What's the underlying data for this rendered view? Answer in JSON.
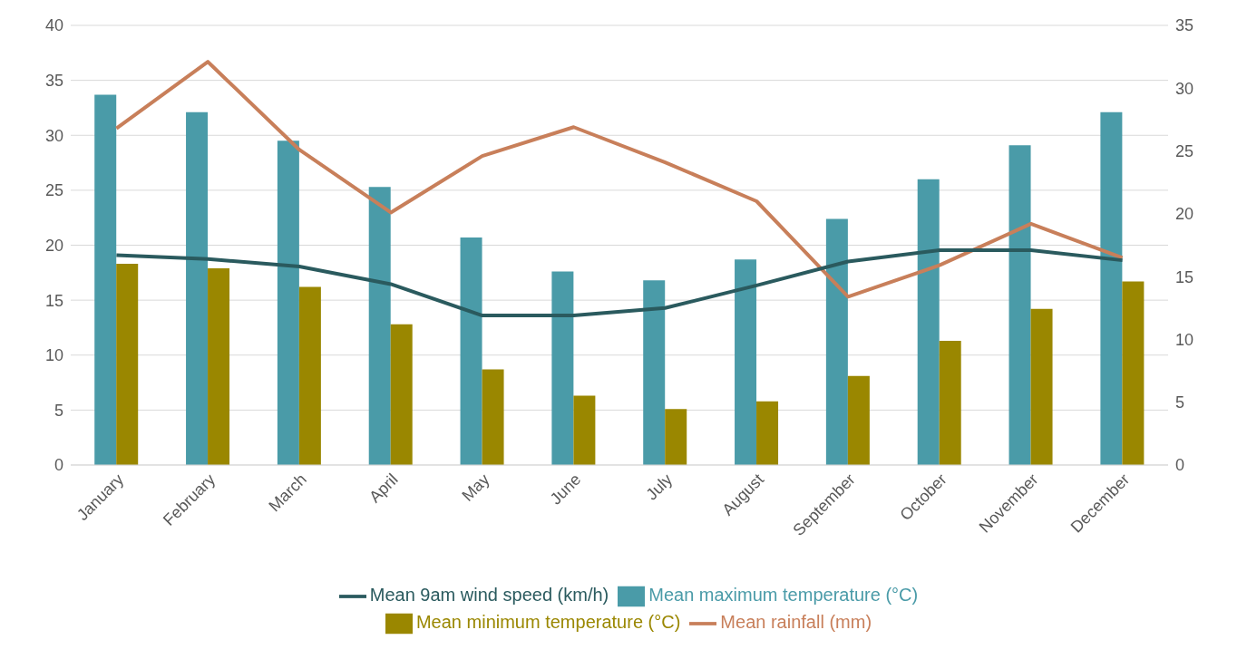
{
  "chart_data": {
    "type": "bar",
    "categories": [
      "January",
      "February",
      "March",
      "April",
      "May",
      "June",
      "July",
      "August",
      "September",
      "October",
      "November",
      "December"
    ],
    "series": [
      {
        "name": "Mean maximum temperature (°C)",
        "color": "#4a9ba8",
        "values": [
          33.7,
          32.1,
          29.5,
          25.3,
          20.7,
          17.6,
          16.8,
          18.7,
          22.4,
          26.0,
          29.1,
          32.1
        ]
      },
      {
        "name": "Mean minimum temperature (°C)",
        "color": "#9a8700",
        "values": [
          18.3,
          17.9,
          16.2,
          12.8,
          8.7,
          6.3,
          5.1,
          5.8,
          8.1,
          11.3,
          14.2,
          16.7
        ]
      },
      {
        "name": "Mean rainfall (mm)",
        "type": "line",
        "axis": "y2",
        "color": "#c87f5a",
        "values": [
          26.8,
          32.1,
          25.1,
          20.1,
          24.6,
          26.9,
          24.1,
          21.0,
          13.4,
          15.9,
          19.2,
          16.5
        ]
      },
      {
        "name": "Mean 9am wind speed (km/h)",
        "type": "line",
        "axis": "y2",
        "color": "#2a5a5e",
        "values": [
          16.7,
          16.4,
          15.8,
          14.4,
          11.9,
          11.9,
          12.5,
          14.3,
          16.2,
          17.1,
          17.1,
          16.3
        ]
      }
    ],
    "ylim": [
      0,
      40
    ],
    "yticks": [
      0,
      5,
      10,
      15,
      20,
      25,
      30,
      35,
      40
    ],
    "y2lim": [
      0,
      35
    ],
    "y2ticks": [
      0,
      5,
      10,
      15,
      20,
      25,
      30,
      35
    ],
    "grid": "y",
    "legend": "bottom",
    "marker": "none"
  }
}
